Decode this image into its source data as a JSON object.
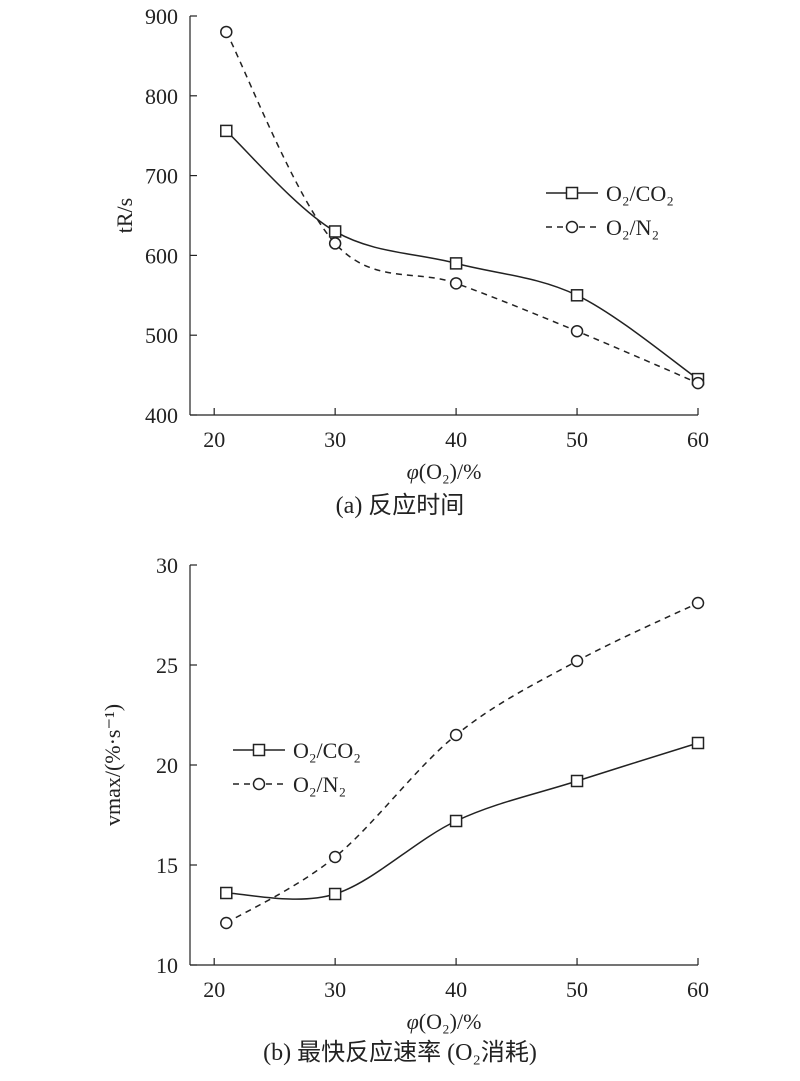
{
  "chart_data": [
    {
      "type": "line",
      "caption": "(a) 反应时间",
      "xlabel": "φ(O₂)/%",
      "ylabel": "tR/s",
      "x": [
        21,
        30,
        40,
        50,
        60
      ],
      "xlim": [
        18,
        60
      ],
      "ylim": [
        400,
        900
      ],
      "xticks": [
        20,
        30,
        40,
        50,
        60
      ],
      "yticks": [
        400,
        500,
        600,
        700,
        800,
        900
      ],
      "grid": false,
      "legend_position": "right",
      "series": [
        {
          "name": "O₂/CO₂",
          "marker": "square",
          "line": "solid",
          "values": [
            756,
            630,
            590,
            550,
            445
          ]
        },
        {
          "name": "O₂/N₂",
          "marker": "circle",
          "line": "dashed",
          "values": [
            880,
            615,
            565,
            505,
            440
          ]
        }
      ]
    },
    {
      "type": "line",
      "caption": "(b) 最快反应速率 (O₂消耗)",
      "xlabel": "φ(O₂)/%",
      "ylabel": "vmax/(%·s⁻¹)",
      "x": [
        21,
        30,
        40,
        50,
        60
      ],
      "xlim": [
        18,
        60
      ],
      "ylim": [
        10,
        30
      ],
      "xticks": [
        20,
        30,
        40,
        50,
        60
      ],
      "yticks": [
        10,
        15,
        20,
        25,
        30
      ],
      "grid": false,
      "legend_position": "left",
      "series": [
        {
          "name": "O₂/CO₂",
          "marker": "square",
          "line": "solid",
          "values": [
            13.6,
            13.55,
            17.2,
            19.2,
            21.1
          ]
        },
        {
          "name": "O₂/N₂",
          "marker": "circle",
          "line": "dashed",
          "values": [
            12.1,
            15.4,
            21.5,
            25.2,
            28.1
          ]
        }
      ]
    }
  ]
}
